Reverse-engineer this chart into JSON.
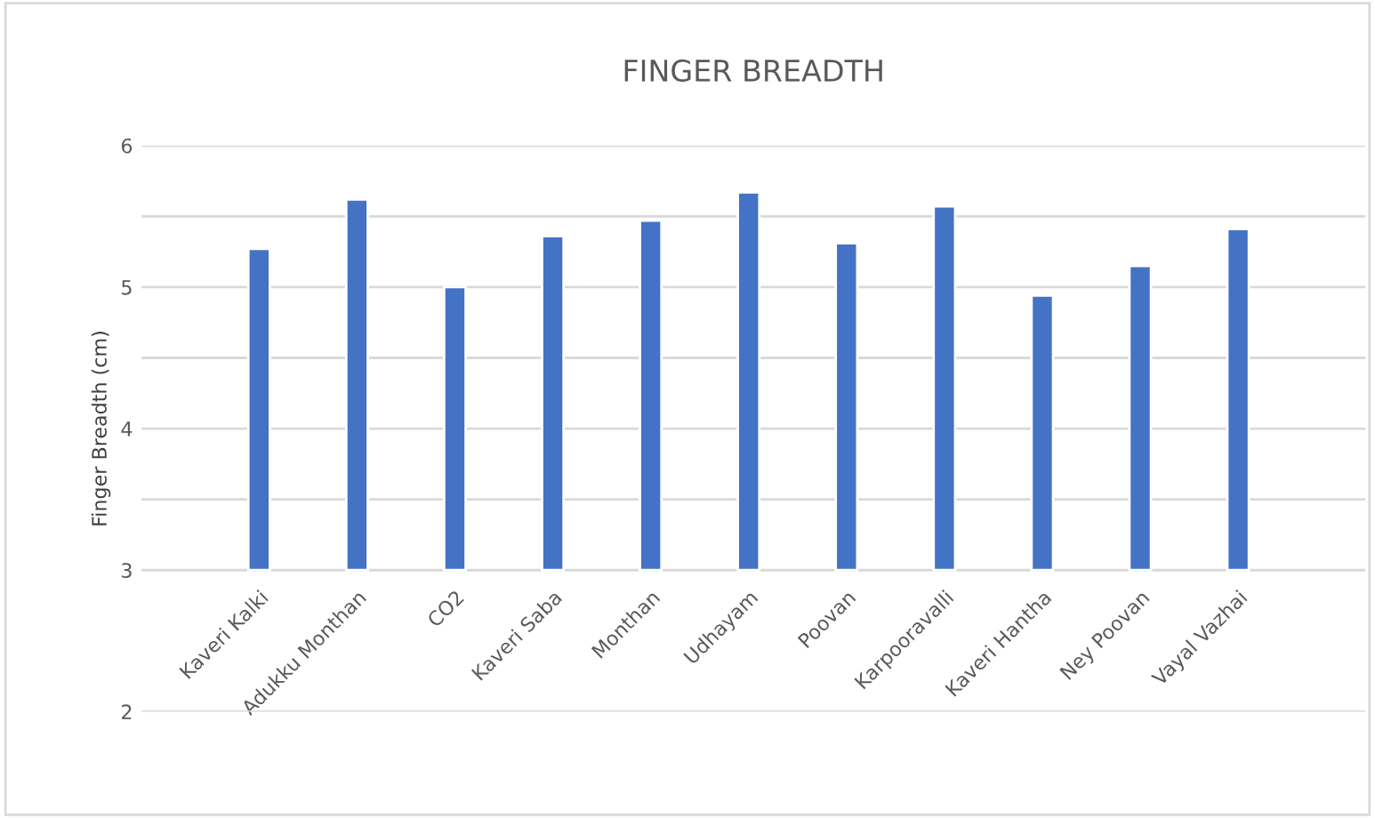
{
  "chart_data": {
    "type": "bar",
    "title": "FINGER BREADTH",
    "ylabel": "Finger Breadth (cm)",
    "categories": [
      "Kaveri Kalki",
      "Adukku Monthan",
      "CO2",
      "Kaveri Saba",
      "Monthan",
      "Udhayam",
      "Poovan",
      "Karpooravalli",
      "Kaveri Hantha",
      "Ney Poovan",
      "Vayal Vazhai"
    ],
    "values": [
      2.27,
      2.62,
      2.0,
      2.36,
      2.47,
      2.67,
      2.31,
      2.57,
      1.94,
      2.15,
      2.41
    ],
    "base": [
      3,
      3,
      3,
      3,
      3,
      3,
      3,
      3,
      3,
      3,
      3
    ],
    "color": "#4472c4",
    "ylim": [
      2,
      6
    ],
    "yticks": [
      2,
      3,
      {
        "value": 3.5,
        "label": null
      },
      4,
      {
        "value": 4.5,
        "label": null
      },
      5,
      {
        "value": 5.5,
        "label": null
      },
      6
    ],
    "grid": "y",
    "legend": false
  }
}
